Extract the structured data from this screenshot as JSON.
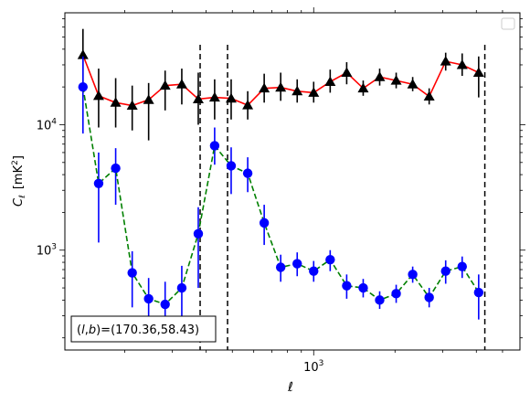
{
  "chart_data": {
    "type": "line",
    "xlabel_base": "ℓ",
    "ylabel_base": "C",
    "ylabel_sub": "ℓ",
    "ylabel_unit_pre": "[mK",
    "ylabel_unit_sup": "2",
    "ylabel_unit_post": "]",
    "xscale": "log",
    "yscale": "log",
    "xlim": [
      120,
      5800
    ],
    "ylim": [
      160,
      78000
    ],
    "x_ticks": [
      {
        "value": 1000,
        "base": "10",
        "exp": "3"
      }
    ],
    "y_ticks": [
      {
        "value": 1000,
        "base": "10",
        "exp": "3"
      },
      {
        "value": 10000,
        "base": "10",
        "exp": "4"
      }
    ],
    "annotation": {
      "pre": "(",
      "l": "l",
      "comma": ",",
      "b": "b",
      "post": ")=(170.36,58.43)"
    },
    "legend": {
      "placement": "top-right",
      "entries": []
    },
    "vlines": [
      380,
      480,
      4300
    ],
    "series": [
      {
        "line_color": "#ff0000",
        "marker_color": "#000000",
        "marker": "triangle",
        "line_style": "solid",
        "points": [
          {
            "x": 140,
            "y": 36000,
            "lo": 21000,
            "hi": 58000
          },
          {
            "x": 160,
            "y": 17000,
            "lo": 9500,
            "hi": 28000
          },
          {
            "x": 185,
            "y": 15000,
            "lo": 9500,
            "hi": 23500
          },
          {
            "x": 213,
            "y": 14200,
            "lo": 9000,
            "hi": 20500
          },
          {
            "x": 245,
            "y": 15800,
            "lo": 7500,
            "hi": 21500
          },
          {
            "x": 282,
            "y": 20500,
            "lo": 13000,
            "hi": 27000
          },
          {
            "x": 325,
            "y": 21000,
            "lo": 14500,
            "hi": 28000
          },
          {
            "x": 374,
            "y": 16000,
            "lo": 10000,
            "hi": 26000
          },
          {
            "x": 430,
            "y": 16500,
            "lo": 11000,
            "hi": 23000
          },
          {
            "x": 495,
            "y": 16200,
            "lo": 11000,
            "hi": 23000
          },
          {
            "x": 570,
            "y": 14300,
            "lo": 11000,
            "hi": 18500
          },
          {
            "x": 656,
            "y": 19500,
            "lo": 15000,
            "hi": 25500
          },
          {
            "x": 755,
            "y": 19800,
            "lo": 15500,
            "hi": 26000
          },
          {
            "x": 869,
            "y": 18500,
            "lo": 15000,
            "hi": 23000
          },
          {
            "x": 1000,
            "y": 18000,
            "lo": 15000,
            "hi": 22000
          },
          {
            "x": 1151,
            "y": 22000,
            "lo": 18000,
            "hi": 27500
          },
          {
            "x": 1325,
            "y": 26000,
            "lo": 21000,
            "hi": 31500
          },
          {
            "x": 1525,
            "y": 19500,
            "lo": 17000,
            "hi": 22500
          },
          {
            "x": 1755,
            "y": 24000,
            "lo": 20500,
            "hi": 28000
          },
          {
            "x": 2020,
            "y": 22500,
            "lo": 19500,
            "hi": 26000
          },
          {
            "x": 2325,
            "y": 21000,
            "lo": 18500,
            "hi": 24000
          },
          {
            "x": 2676,
            "y": 16800,
            "lo": 14500,
            "hi": 19500
          },
          {
            "x": 3080,
            "y": 32000,
            "lo": 27000,
            "hi": 37500
          },
          {
            "x": 3545,
            "y": 30000,
            "lo": 24500,
            "hi": 37000
          },
          {
            "x": 4080,
            "y": 26000,
            "lo": 16500,
            "hi": 35000
          }
        ]
      },
      {
        "line_color": "#008000",
        "marker_color": "#0000ff",
        "marker": "circle",
        "line_style": "dashed",
        "points": [
          {
            "x": 140,
            "y": 20000,
            "lo": 8500,
            "hi": 35000
          },
          {
            "x": 160,
            "y": 3400,
            "lo": 1150,
            "hi": 6000
          },
          {
            "x": 185,
            "y": 4500,
            "lo": 2300,
            "hi": 6500
          },
          {
            "x": 213,
            "y": 660,
            "lo": 350,
            "hi": 980
          },
          {
            "x": 245,
            "y": 410,
            "lo": 240,
            "hi": 600
          },
          {
            "x": 282,
            "y": 370,
            "lo": 220,
            "hi": 560
          },
          {
            "x": 325,
            "y": 500,
            "lo": 270,
            "hi": 750
          },
          {
            "x": 374,
            "y": 1350,
            "lo": 500,
            "hi": 2200
          },
          {
            "x": 430,
            "y": 6800,
            "lo": 4800,
            "hi": 9500
          },
          {
            "x": 495,
            "y": 4700,
            "lo": 2800,
            "hi": 6600
          },
          {
            "x": 570,
            "y": 4100,
            "lo": 2900,
            "hi": 5500
          },
          {
            "x": 656,
            "y": 1650,
            "lo": 1100,
            "hi": 2300
          },
          {
            "x": 755,
            "y": 730,
            "lo": 560,
            "hi": 920
          },
          {
            "x": 869,
            "y": 780,
            "lo": 620,
            "hi": 960
          },
          {
            "x": 1000,
            "y": 680,
            "lo": 560,
            "hi": 820
          },
          {
            "x": 1151,
            "y": 840,
            "lo": 680,
            "hi": 1000
          },
          {
            "x": 1325,
            "y": 520,
            "lo": 410,
            "hi": 640
          },
          {
            "x": 1525,
            "y": 500,
            "lo": 420,
            "hi": 590
          },
          {
            "x": 1755,
            "y": 400,
            "lo": 340,
            "hi": 470
          },
          {
            "x": 2020,
            "y": 450,
            "lo": 380,
            "hi": 530
          },
          {
            "x": 2325,
            "y": 640,
            "lo": 550,
            "hi": 740
          },
          {
            "x": 2676,
            "y": 420,
            "lo": 350,
            "hi": 500
          },
          {
            "x": 3080,
            "y": 680,
            "lo": 540,
            "hi": 830
          },
          {
            "x": 3545,
            "y": 740,
            "lo": 600,
            "hi": 890
          },
          {
            "x": 4080,
            "y": 460,
            "lo": 280,
            "hi": 640
          }
        ]
      }
    ]
  }
}
